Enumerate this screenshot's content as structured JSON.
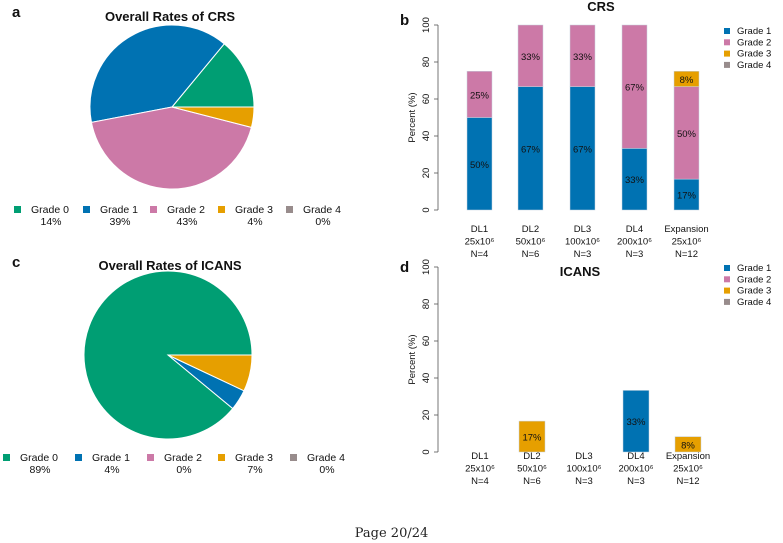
{
  "page_label": "Page 20/24",
  "colors": {
    "Grade 0": "#009E73",
    "Grade 1": "#0072B2",
    "Grade 2": "#CC79A7",
    "Grade 3": "#E69F00",
    "Grade 4": "#988C8C"
  },
  "chart_data": [
    {
      "panel": "a",
      "type": "pie",
      "title": "Overall Rates of CRS",
      "labels": [
        "Grade 0",
        "Grade 1",
        "Grade 2",
        "Grade 3",
        "Grade 4"
      ],
      "values": [
        14,
        39,
        43,
        4,
        0
      ],
      "value_labels": [
        "14%",
        "39%",
        "43%",
        "4%",
        "0%"
      ],
      "start": "3 o'clock, counterclockwise",
      "legend": "bottom"
    },
    {
      "panel": "b",
      "type": "bar",
      "stacked": true,
      "title": "CRS",
      "ylabel": "Percent (%)",
      "ylim": [
        0,
        100
      ],
      "yticks": [
        0,
        20,
        40,
        60,
        80,
        100
      ],
      "categories": [
        [
          "DL1",
          "25x10⁶",
          "N=4"
        ],
        [
          "DL2",
          "50x10⁶",
          "N=6"
        ],
        [
          "DL3",
          "100x10⁶",
          "N=3"
        ],
        [
          "DL4",
          "200x10⁶",
          "N=3"
        ],
        [
          "Expansion",
          "25x10⁶",
          "N=12"
        ]
      ],
      "series": [
        {
          "name": "Grade 1",
          "values": [
            50,
            66.7,
            66.7,
            33.3,
            16.7
          ],
          "labels": [
            "50%",
            "67%",
            "67%",
            "33%",
            "17%"
          ]
        },
        {
          "name": "Grade 2",
          "values": [
            25,
            33.3,
            33.3,
            66.7,
            50
          ],
          "labels": [
            "25%",
            "33%",
            "33%",
            "67%",
            "50%"
          ]
        },
        {
          "name": "Grade 3",
          "values": [
            0,
            0,
            0,
            0,
            8.3
          ],
          "labels": [
            "",
            "",
            "",
            "",
            "8%"
          ]
        },
        {
          "name": "Grade 4",
          "values": [
            0,
            0,
            0,
            0,
            0
          ],
          "labels": [
            "",
            "",
            "",
            "",
            ""
          ]
        }
      ],
      "legend": "top-right"
    },
    {
      "panel": "c",
      "type": "pie",
      "title": "Overall Rates of ICANS",
      "labels": [
        "Grade 0",
        "Grade 1",
        "Grade 2",
        "Grade 3",
        "Grade 4"
      ],
      "values": [
        89,
        4,
        0,
        7,
        0
      ],
      "value_labels": [
        "89%",
        "4%",
        "0%",
        "7%",
        "0%"
      ],
      "start": "3 o'clock, counterclockwise",
      "legend": "bottom"
    },
    {
      "panel": "d",
      "type": "bar",
      "stacked": true,
      "title": "ICANS",
      "ylabel": "Percent (%)",
      "ylim": [
        0,
        100
      ],
      "yticks": [
        0,
        20,
        40,
        60,
        80,
        100
      ],
      "categories": [
        [
          "DL1",
          "25x10⁶",
          "N=4"
        ],
        [
          "DL2",
          "50x10⁶",
          "N=6"
        ],
        [
          "DL3",
          "100x10⁶",
          "N=3"
        ],
        [
          "DL4",
          "200x10⁶",
          "N=3"
        ],
        [
          "Expansion",
          "25x10⁶",
          "N=12"
        ]
      ],
      "series": [
        {
          "name": "Grade 1",
          "values": [
            0,
            0,
            0,
            33.3,
            0
          ],
          "labels": [
            "",
            "",
            "",
            "33%",
            ""
          ]
        },
        {
          "name": "Grade 2",
          "values": [
            0,
            0,
            0,
            0,
            0
          ],
          "labels": [
            "",
            "",
            "",
            "",
            ""
          ]
        },
        {
          "name": "Grade 3",
          "values": [
            0,
            16.7,
            0,
            0,
            8.3
          ],
          "labels": [
            "",
            "17%",
            "",
            "",
            "8%"
          ]
        },
        {
          "name": "Grade 4",
          "values": [
            0,
            0,
            0,
            0,
            0
          ],
          "labels": [
            "",
            "",
            "",
            "",
            ""
          ]
        }
      ],
      "legend": "top-right"
    }
  ]
}
